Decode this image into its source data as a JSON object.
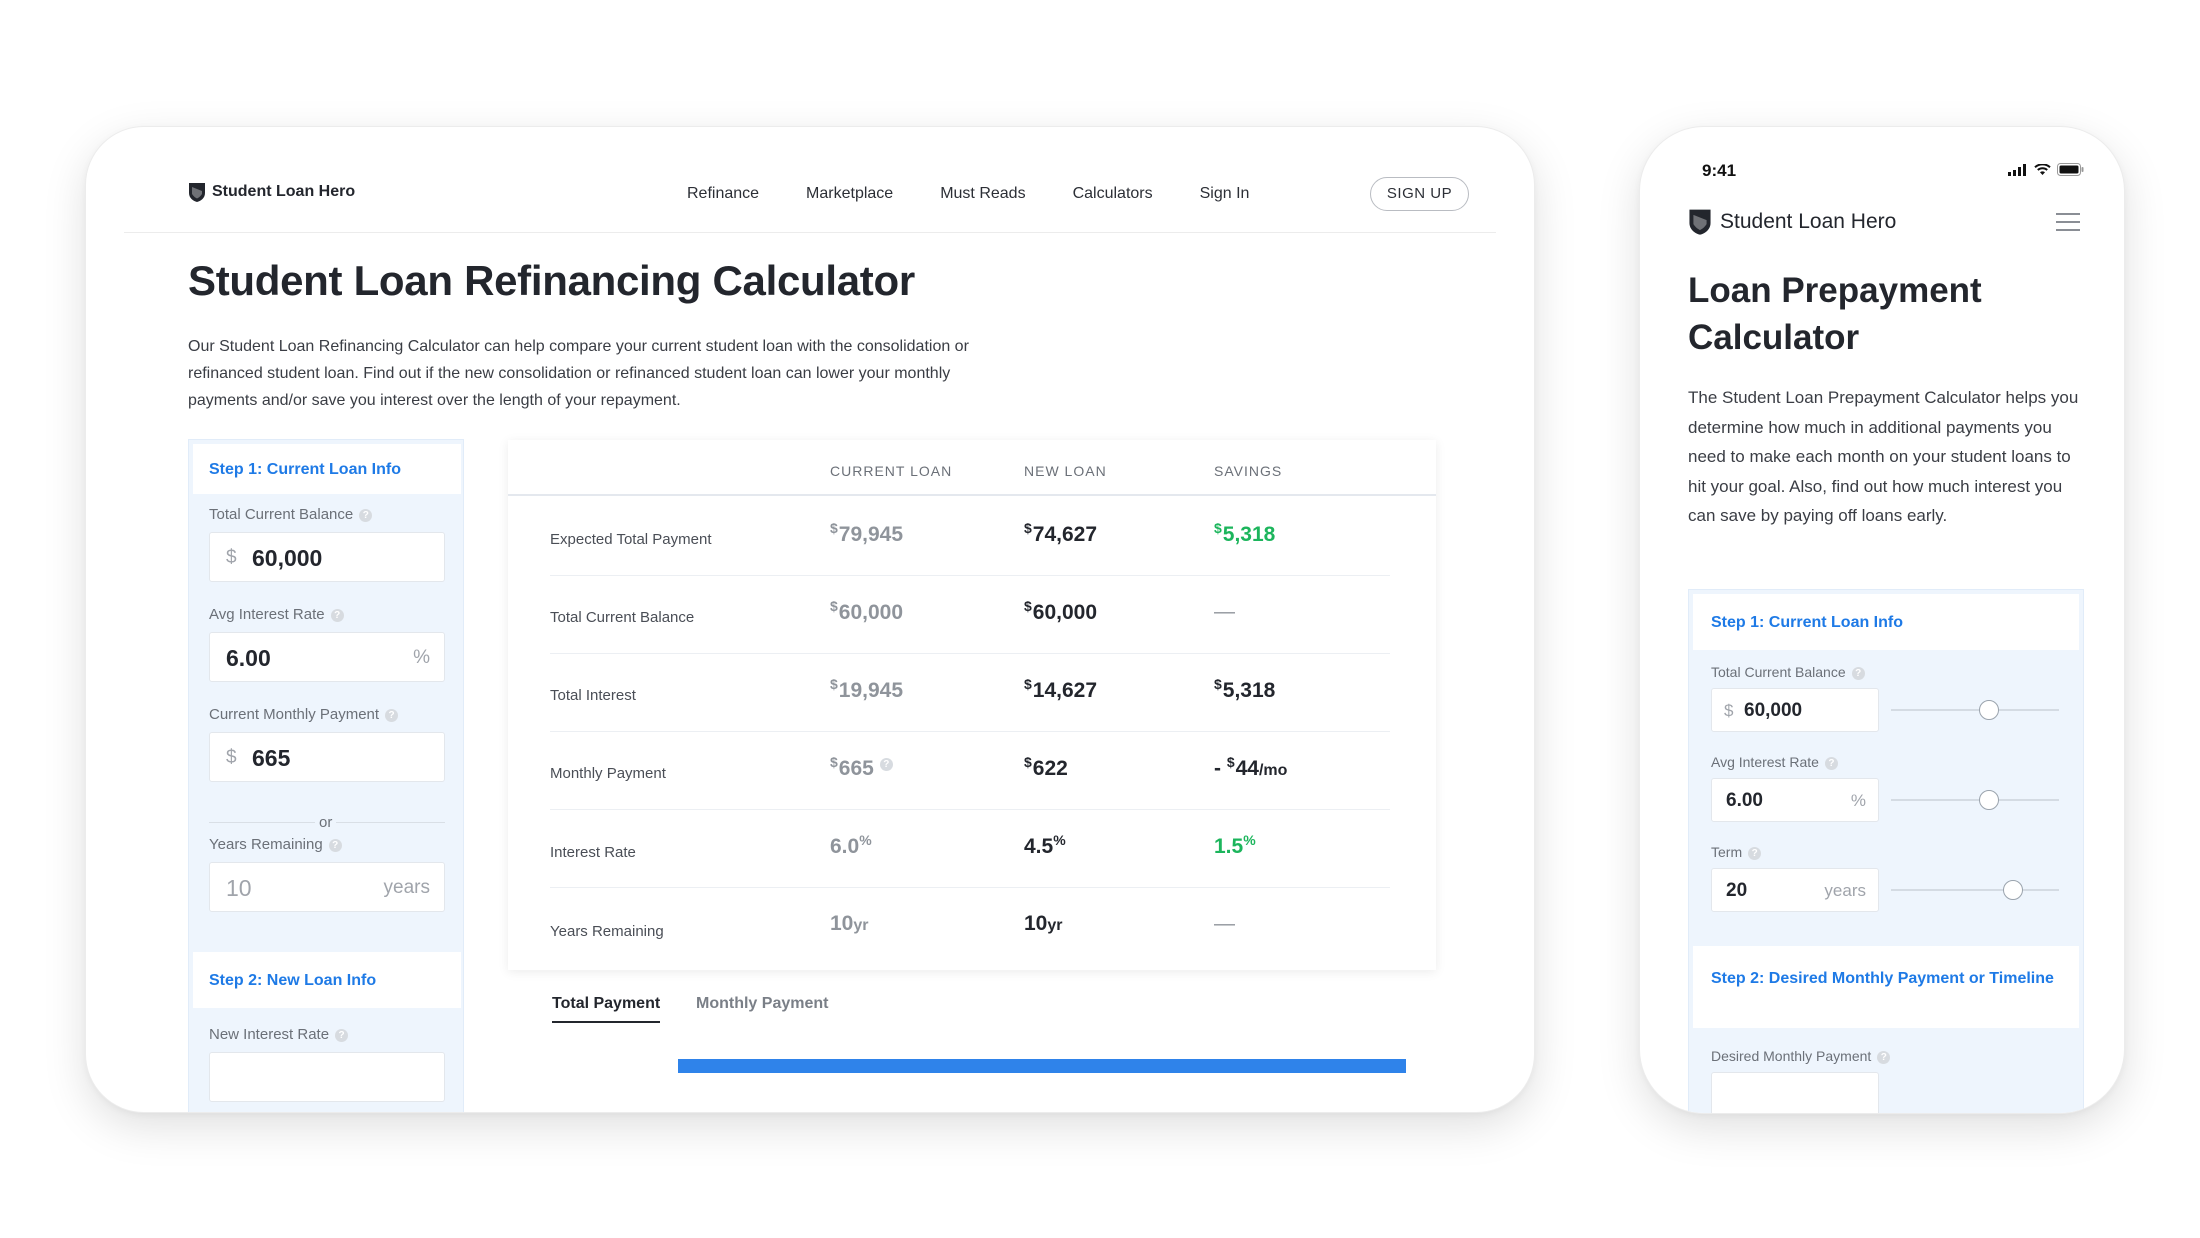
{
  "brand": {
    "name": "Student Loan Hero"
  },
  "desktop": {
    "nav": [
      "Refinance",
      "Marketplace",
      "Must Reads",
      "Calculators",
      "Sign In"
    ],
    "signup_label": "SIGN UP",
    "title": "Student Loan Refinancing Calculator",
    "description": "Our Student Loan Refinancing Calculator can help compare your current student loan with the consolidation or refinanced student loan. Find out if the new consolidation or refinanced student loan can lower your monthly payments and/or save you interest over the length of your repayment.",
    "step1": {
      "heading": "Step 1:  Current Loan Info",
      "balance_label": "Total Current Balance",
      "balance_prefix": "$",
      "balance_value": "60,000",
      "rate_label": "Avg Interest Rate",
      "rate_value": "6.00",
      "rate_suffix": "%",
      "payment_label": "Current Monthly Payment",
      "payment_prefix": "$",
      "payment_value": "665",
      "or_text": "or",
      "years_label": "Years Remaining",
      "years_value": "10",
      "years_suffix": "years"
    },
    "step2": {
      "heading": "Step 2:  New Loan Info",
      "rate_label": "New Interest Rate"
    },
    "table": {
      "headers": [
        "CURRENT LOAN",
        "NEW LOAN",
        "SAVINGS"
      ],
      "rows": [
        {
          "label": "Expected Total Payment",
          "current": "79,945",
          "new": "74,627",
          "savings": "5,318"
        },
        {
          "label": "Total Current Balance",
          "current": "60,000",
          "new": "60,000",
          "savings": "—"
        },
        {
          "label": "Total Interest",
          "current": "19,945",
          "new": "14,627",
          "savings": "5,318"
        },
        {
          "label": "Monthly Payment",
          "current": "665",
          "new": "622",
          "savings": "44",
          "savings_prefix": "- ",
          "savings_unit": "/mo"
        },
        {
          "label": "Interest Rate",
          "current": "6.0",
          "new": "4.5",
          "savings": "1.5"
        },
        {
          "label": "Years Remaining",
          "current": "10",
          "new": "10",
          "unit": "yr",
          "savings": "—"
        }
      ],
      "currency_symbol": "$",
      "percent_symbol": "%"
    },
    "tabs": [
      "Total Payment",
      "Monthly Payment"
    ]
  },
  "mobile": {
    "time": "9:41",
    "title": "Loan Prepayment Calculator",
    "description": "The Student Loan Prepayment Calculator helps you determine how much in additional payments you need to make each month on your student loans to hit your goal. Also, find out how much interest you can save by paying off loans early.",
    "step1": {
      "heading": "Step 1:  Current Loan Info",
      "balance_label": "Total Current Balance",
      "balance_prefix": "$",
      "balance_value": "60,000",
      "rate_label": "Avg Interest Rate",
      "rate_value": "6.00",
      "rate_suffix": "%",
      "term_label": "Term",
      "term_value": "20",
      "term_suffix": "years"
    },
    "step2": {
      "heading": "Step 2:  Desired Monthly Payment or Timeline",
      "payment_label": "Desired Monthly Payment"
    }
  },
  "colors": {
    "accent_blue": "#1e7ae6",
    "savings_green": "#1cb55c",
    "panel_bg": "#eef5fd",
    "chart_bar": "#2f83ea"
  },
  "icons": [
    "shield-logo-icon",
    "help-icon",
    "menu-icon",
    "signal-icon",
    "wifi-icon",
    "battery-icon"
  ]
}
